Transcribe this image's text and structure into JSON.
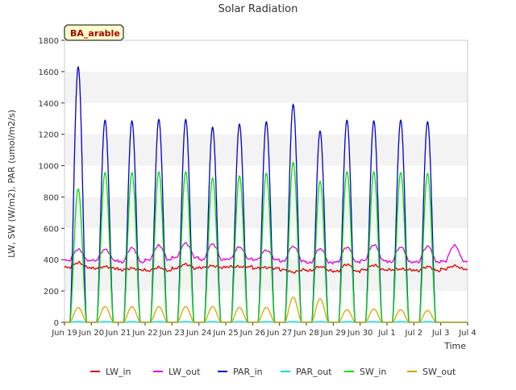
{
  "chart_data": {
    "type": "line",
    "title": "Solar Radiation",
    "xlabel": "Time",
    "ylabel": "LW, SW (W/m2), PAR (umol/m2/s)",
    "ylim": [
      0,
      1800
    ],
    "yticks": [
      0,
      200,
      400,
      600,
      800,
      1000,
      1200,
      1400,
      1600,
      1800
    ],
    "xlim": [
      "2024-06-19",
      "2024-07-04"
    ],
    "xtick_labels": [
      "Jun 19",
      "Jun 20",
      "Jun 21",
      "Jun 22",
      "Jun 23",
      "Jun 24",
      "Jun 25",
      "Jun 26",
      "Jun 27",
      "Jun 28",
      "Jun 29",
      "Jun 30",
      "Jul 1",
      "Jul 2",
      "Jul 3",
      "Jul 4"
    ],
    "grid": "horizontal-bands",
    "legend_position": "bottom",
    "site_label": "BA_arable",
    "days": [
      "Jun 19",
      "Jun 20",
      "Jun 21",
      "Jun 22",
      "Jun 23",
      "Jun 24",
      "Jun 25",
      "Jun 26",
      "Jun 27",
      "Jun 28",
      "Jun 29",
      "Jun 30",
      "Jul 1",
      "Jul 2",
      "Jul 3"
    ],
    "series": [
      {
        "name": "LW_in",
        "color": "#dd0000",
        "kind": "lw_in",
        "night": [
          350,
          345,
          335,
          330,
          345,
          350,
          355,
          345,
          335,
          330,
          325,
          335,
          335,
          330,
          340
        ],
        "day": [
          380,
          355,
          345,
          350,
          370,
          360,
          355,
          350,
          320,
          355,
          370,
          365,
          340,
          355,
          360
        ]
      },
      {
        "name": "LW_out",
        "color": "#dd00dd",
        "kind": "lw_out",
        "night": [
          395,
          395,
          385,
          400,
          415,
          400,
          405,
          400,
          390,
          380,
          385,
          395,
          385,
          385,
          390
        ],
        "day": [
          465,
          465,
          475,
          490,
          505,
          500,
          480,
          460,
          485,
          470,
          480,
          495,
          480,
          485,
          490
        ]
      },
      {
        "name": "PAR_in",
        "color": "#0000cc",
        "kind": "peak",
        "peak": [
          1630,
          1290,
          1285,
          1295,
          1295,
          1245,
          1265,
          1280,
          1390,
          1220,
          1290,
          1285,
          1290,
          1280,
          null
        ]
      },
      {
        "name": "PAR_out",
        "color": "#00dddd",
        "kind": "peak",
        "peak": [
          5,
          5,
          5,
          5,
          5,
          5,
          5,
          5,
          5,
          5,
          5,
          5,
          5,
          5,
          null
        ]
      },
      {
        "name": "SW_in",
        "color": "#00dd00",
        "kind": "peak",
        "peak": [
          850,
          955,
          955,
          960,
          960,
          920,
          935,
          950,
          1020,
          900,
          960,
          960,
          955,
          950,
          null
        ]
      },
      {
        "name": "SW_out",
        "color": "#e0a000",
        "kind": "peak",
        "peak": [
          95,
          100,
          100,
          100,
          100,
          100,
          95,
          95,
          160,
          150,
          80,
          85,
          80,
          75,
          null
        ]
      }
    ]
  }
}
